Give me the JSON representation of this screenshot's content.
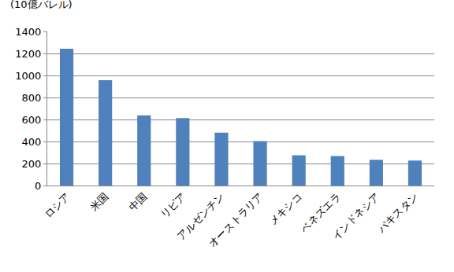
{
  "chart_data": {
    "type": "bar",
    "y_label": "(10億バレル)",
    "categories": [
      "ロシア",
      "米国",
      "中国",
      "リビア",
      "アルゼンチン",
      "オーストラリア",
      "メキシコ",
      "ベネズエラ",
      "インドネシア",
      "パキスタン"
    ],
    "values": [
      1243,
      958,
      638,
      613,
      480,
      403,
      275,
      268,
      234,
      227
    ],
    "color": "#4f81bd",
    "ylim": [
      0,
      1400
    ],
    "yticks": [
      0,
      200,
      400,
      600,
      800,
      1000,
      1200,
      1400
    ],
    "grid": true
  }
}
